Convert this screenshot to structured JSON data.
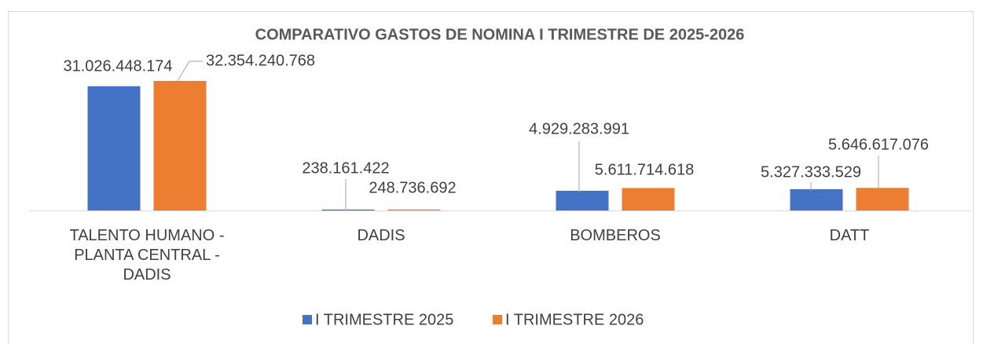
{
  "chart_data": {
    "type": "bar",
    "title": "COMPARATIVO GASTOS DE NOMINA I TRIMESTRE DE 2025-2026",
    "categories": [
      "TALENTO HUMANO - PLANTA CENTRAL - DADIS",
      "DADIS",
      "BOMBEROS",
      "DATT"
    ],
    "series": [
      {
        "name": "I TRIMESTRE 2025",
        "color": "#4472c4",
        "values": [
          31026448174,
          238161422,
          4929283991,
          5327333529
        ],
        "value_labels": [
          "31.026.448.174",
          "238.161.422",
          "4.929.283.991",
          "5.327.333.529"
        ]
      },
      {
        "name": "I TRIMESTRE 2026",
        "color": "#ed7d31",
        "values": [
          32354240768,
          248736692,
          5611714618,
          5646617076
        ],
        "value_labels": [
          "32.354.240.768",
          "248.736.692",
          "5.611.714.618",
          "5.646.617.076"
        ]
      }
    ],
    "legend": "bottom"
  }
}
